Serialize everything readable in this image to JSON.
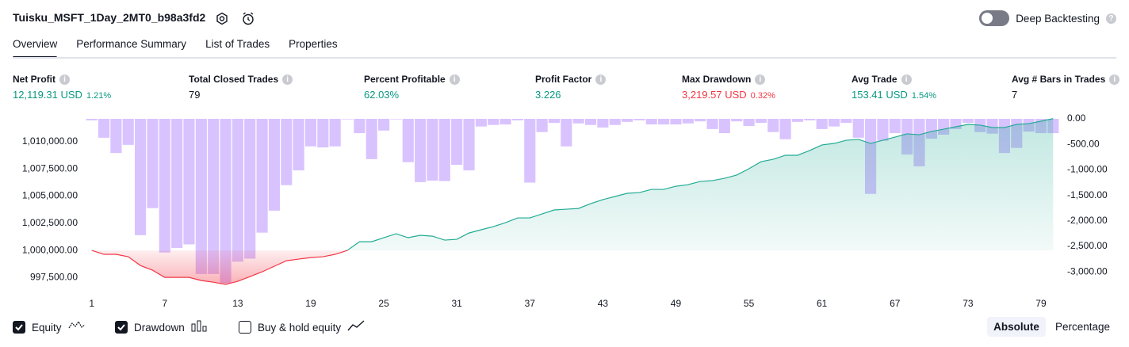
{
  "header": {
    "title": "Tuisku_MSFT_1Day_2MT0_b98a3fd2",
    "deep_backtesting": {
      "label": "Deep Backtesting",
      "enabled": false
    }
  },
  "tabs": {
    "items": [
      "Overview",
      "Performance Summary",
      "List of Trades",
      "Properties"
    ],
    "active": 0
  },
  "stats": [
    {
      "label": "Net Profit",
      "value": "12,119.31 USD",
      "percent": "1.21%",
      "color": "#089981"
    },
    {
      "label": "Total Closed Trades",
      "value": "79",
      "color": "#131722"
    },
    {
      "label": "Percent Profitable",
      "value": "62.03%",
      "color": "#089981"
    },
    {
      "label": "Profit Factor",
      "value": "3.226",
      "color": "#089981"
    },
    {
      "label": "Max Drawdown",
      "value": "3,219.57 USD",
      "percent": "0.32%",
      "color": "#f23645"
    },
    {
      "label": "Avg Trade",
      "value": "153.41 USD",
      "percent": "1.54%",
      "color": "#089981"
    },
    {
      "label": "Avg # Bars in Trades",
      "value": "7",
      "color": "#131722"
    }
  ],
  "chart_data": {
    "type": "equity-drawdown",
    "x": [
      1,
      2,
      3,
      4,
      5,
      6,
      7,
      8,
      9,
      10,
      11,
      12,
      13,
      14,
      15,
      16,
      17,
      18,
      19,
      20,
      21,
      22,
      23,
      24,
      25,
      26,
      27,
      28,
      29,
      30,
      31,
      32,
      33,
      34,
      35,
      36,
      37,
      38,
      39,
      40,
      41,
      42,
      43,
      44,
      45,
      46,
      47,
      48,
      49,
      50,
      51,
      52,
      53,
      54,
      55,
      56,
      57,
      58,
      59,
      60,
      61,
      62,
      63,
      64,
      65,
      66,
      67,
      68,
      69,
      70,
      71,
      72,
      73,
      74,
      75,
      76,
      77,
      78,
      79,
      80
    ],
    "xlim": [
      0.5,
      80.5
    ],
    "xticks": [
      1,
      7,
      13,
      19,
      25,
      31,
      37,
      43,
      49,
      55,
      61,
      67,
      73,
      79
    ],
    "ylim": [
      996800,
      1012100
    ],
    "yticks": [
      {
        "value": 997500,
        "label": "997,500.00"
      },
      {
        "value": 1000000,
        "label": "1,000,000.00"
      },
      {
        "value": 1002500,
        "label": "1,002,500.00"
      },
      {
        "value": 1005000,
        "label": "1,005,000.00"
      },
      {
        "value": 1007500,
        "label": "1,007,500.00"
      },
      {
        "value": 1010000,
        "label": "1,010,000.00"
      }
    ],
    "y2lim": [
      -3260,
      0
    ],
    "y2ticks": [
      {
        "value": 0,
        "label": "0.00"
      },
      {
        "value": -500,
        "label": "-500.00"
      },
      {
        "value": -1000,
        "label": "-1,000.00"
      },
      {
        "value": -1500,
        "label": "-1,500.00"
      },
      {
        "value": -2000,
        "label": "-2,000.00"
      },
      {
        "value": -2500,
        "label": "-2,500.00"
      },
      {
        "value": -3000,
        "label": "-3,000.00"
      }
    ],
    "series": [
      {
        "name": "Equity",
        "color": "#22ab94",
        "below_color": "#f23645",
        "checked": true,
        "values": [
          1000000,
          999640,
          999640,
          999420,
          998610,
          998180,
          997520,
          997520,
          997520,
          997230,
          997080,
          996870,
          997160,
          997590,
          998030,
          998540,
          999050,
          999200,
          999340,
          999420,
          999640,
          1000000,
          1000800,
          1000800,
          1001170,
          1001530,
          1001170,
          1001390,
          1001310,
          1000950,
          1001020,
          1001600,
          1001900,
          1002190,
          1002550,
          1002990,
          1002990,
          1003350,
          1003720,
          1003790,
          1003860,
          1004300,
          1004670,
          1004960,
          1005250,
          1005320,
          1005610,
          1005610,
          1005900,
          1006050,
          1006340,
          1006420,
          1006630,
          1006930,
          1007510,
          1008160,
          1008380,
          1008750,
          1008750,
          1009190,
          1009700,
          1009840,
          1010130,
          1010210,
          1009840,
          1010130,
          1010420,
          1010720,
          1010640,
          1010940,
          1011150,
          1011370,
          1011590,
          1011520,
          1011300,
          1011300,
          1011590,
          1011660,
          1011880,
          1012119.31
        ]
      },
      {
        "name": "Drawdown",
        "color": "#b388ff",
        "axis": "y2",
        "checked": true,
        "values": [
          -30,
          -370,
          -670,
          -510,
          -2280,
          -1750,
          -2620,
          -2530,
          -2460,
          -3040,
          -3040,
          -3219.57,
          -2800,
          -2740,
          -2230,
          -1800,
          -1300,
          -1010,
          -540,
          -560,
          -540,
          -10,
          -280,
          -790,
          -230,
          -10,
          -850,
          -1240,
          -1210,
          -1220,
          -900,
          -1010,
          -150,
          -120,
          -110,
          -30,
          -1250,
          -260,
          -80,
          -540,
          -90,
          -120,
          -170,
          -120,
          -60,
          -30,
          -110,
          -110,
          -110,
          -90,
          -50,
          -200,
          -280,
          -50,
          -140,
          -80,
          -260,
          -400,
          -60,
          -30,
          -200,
          -150,
          -80,
          -370,
          -1470,
          -430,
          -280,
          -700,
          -930,
          -390,
          -310,
          -200,
          -80,
          -260,
          -290,
          -670,
          -570,
          -250,
          -280,
          -280
        ]
      },
      {
        "name": "Buy & hold equity",
        "checked": false
      }
    ]
  },
  "view_modes": {
    "items": [
      "Absolute",
      "Percentage"
    ],
    "active": 0
  }
}
